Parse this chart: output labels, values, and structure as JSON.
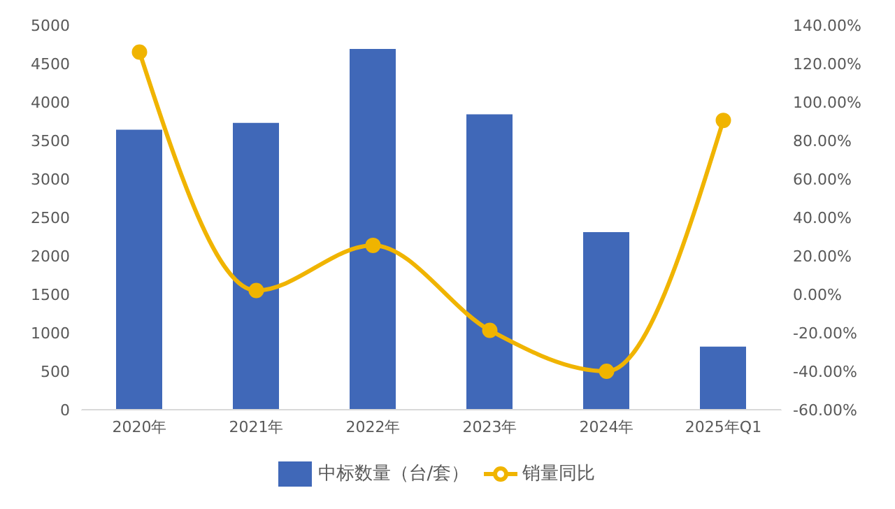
{
  "chart_data": {
    "type": "bar",
    "categories": [
      "2020年",
      "2021年",
      "2022年",
      "2023年",
      "2024年",
      "2025年Q1"
    ],
    "series": [
      {
        "name": "中标数量（台/套）",
        "color": "#4068b8",
        "values": [
          3640,
          3730,
          4690,
          3840,
          2310,
          820
        ]
      },
      {
        "name": "销量同比",
        "type": "line",
        "axis": "y2",
        "color": "#f0b400",
        "values": [
          126,
          2,
          25.5,
          -18.7,
          -40,
          90.5
        ]
      }
    ],
    "ylim": [
      0,
      5000
    ],
    "yticks": [
      0,
      500,
      1000,
      1500,
      2000,
      2500,
      3000,
      3500,
      4000,
      4500,
      5000
    ],
    "y2lim": [
      -60,
      140
    ],
    "y2ticks": [
      {
        "value": -60,
        "label": "-60.00%"
      },
      {
        "value": -40,
        "label": "-40.00%"
      },
      {
        "value": -20,
        "label": "-20.00%"
      },
      {
        "value": 0,
        "label": "0.00%"
      },
      {
        "value": 20,
        "label": "20.00%"
      },
      {
        "value": 40,
        "label": "40.00%"
      },
      {
        "value": 60,
        "label": "60.00%"
      },
      {
        "value": 80,
        "label": "80.00%"
      },
      {
        "value": 100,
        "label": "100.00%"
      },
      {
        "value": 120,
        "label": "120.00%"
      },
      {
        "value": 140,
        "label": "140.00%"
      }
    ],
    "grid": false,
    "legend": "bottom",
    "marker": "circle"
  }
}
